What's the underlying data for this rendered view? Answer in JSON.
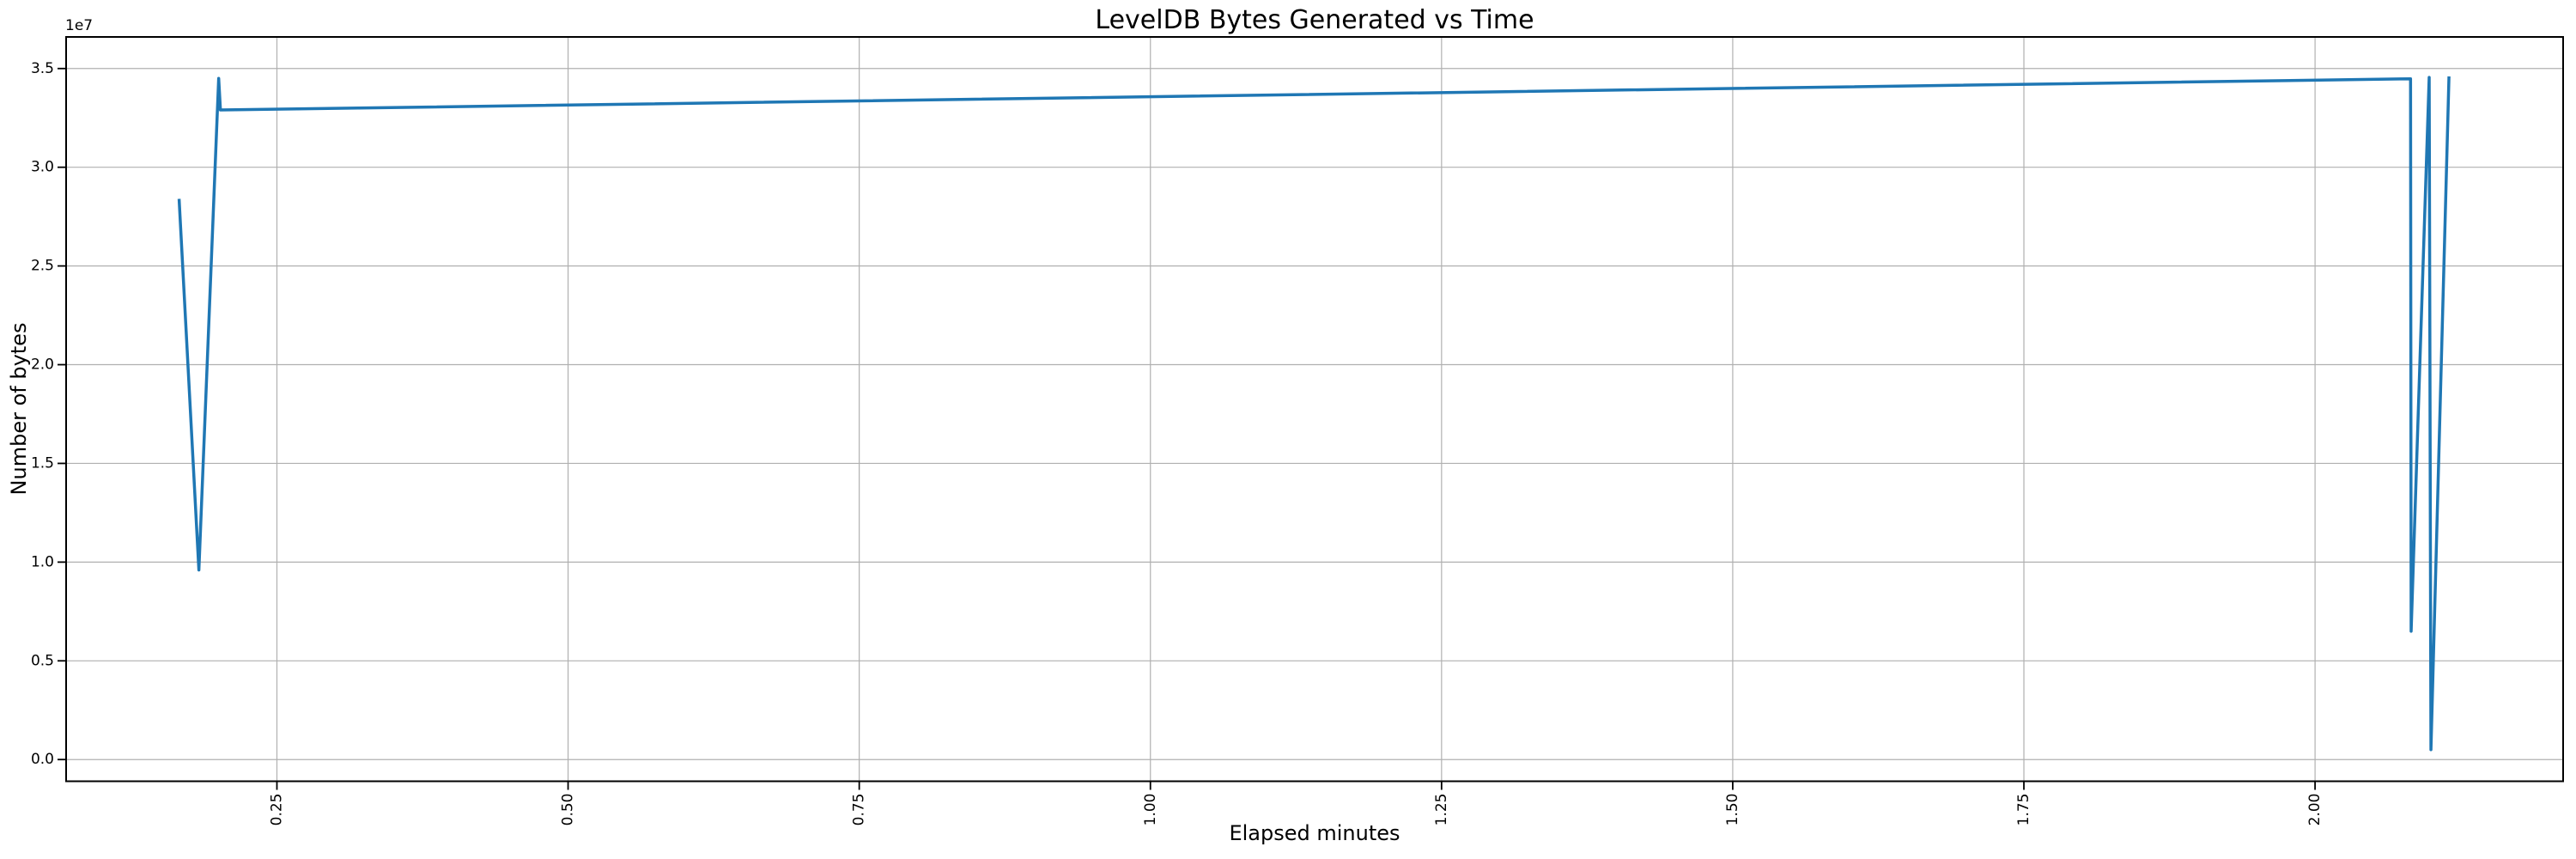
{
  "chart_data": {
    "type": "line",
    "title": "LevelDB Bytes Generated vs Time",
    "xlabel": "Elapsed minutes",
    "ylabel": "Number of bytes",
    "y_offset_label": "1e7",
    "grid": true,
    "legend": false,
    "xlim": [
      0.069,
      2.213
    ],
    "ylim": [
      -1100000,
      36600000
    ],
    "xticks": [
      0.25,
      0.5,
      0.75,
      1.0,
      1.25,
      1.5,
      1.75,
      2.0
    ],
    "xtick_labels": [
      "0.25",
      "0.50",
      "0.75",
      "1.00",
      "1.25",
      "1.50",
      "1.75",
      "2.00"
    ],
    "xtick_rotation": 90,
    "yticks": [
      0,
      5000000,
      10000000,
      15000000,
      20000000,
      25000000,
      30000000,
      35000000
    ],
    "ytick_labels": [
      "0.0",
      "0.5",
      "1.0",
      "1.5",
      "2.0",
      "2.5",
      "3.0",
      "3.5"
    ],
    "line_color": "#1f77b4",
    "grid_color": "#b0b0b0",
    "spine_color": "#000000",
    "text_color": "#000000",
    "series": [
      {
        "points": [
          [
            0.166,
            28400000
          ],
          [
            0.183,
            9600000
          ],
          [
            0.2,
            34500000
          ],
          [
            0.2015,
            32900000
          ],
          [
            2.082,
            34480000
          ],
          [
            2.0825,
            6500000
          ],
          [
            2.098,
            34550000
          ],
          [
            2.0995,
            500000
          ],
          [
            2.115,
            34600000
          ]
        ]
      }
    ]
  }
}
